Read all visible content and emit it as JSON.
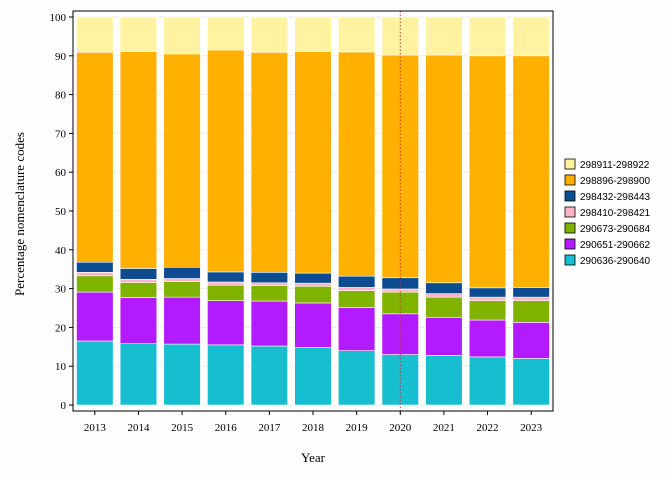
{
  "chart_data": {
    "type": "bar",
    "stacked": true,
    "xlabel": "Year",
    "ylabel": "Percentage nomenclature codes",
    "ylim": [
      0,
      100
    ],
    "yticks": [
      0,
      10,
      20,
      30,
      40,
      50,
      60,
      70,
      80,
      90,
      100
    ],
    "grid": true,
    "legend_position": "right",
    "reference_line": {
      "x": "2020",
      "style": "dotted",
      "color": "#c0392b"
    },
    "categories": [
      "2013",
      "2014",
      "2015",
      "2016",
      "2017",
      "2018",
      "2019",
      "2020",
      "2021",
      "2022",
      "2023"
    ],
    "series": [
      {
        "name": "290636-290640",
        "color": "#17BECF",
        "values": [
          16.5,
          15.8,
          15.7,
          15.5,
          15.2,
          14.8,
          14.0,
          13.0,
          12.8,
          12.4,
          12.0
        ]
      },
      {
        "name": "290651-290662",
        "color": "#B31BFF",
        "values": [
          12.6,
          11.9,
          12.1,
          11.4,
          11.6,
          11.5,
          11.1,
          10.5,
          9.8,
          9.5,
          9.3
        ]
      },
      {
        "name": "290673-290684",
        "color": "#80B300",
        "values": [
          4.2,
          3.9,
          4.0,
          4.0,
          4.0,
          4.3,
          4.4,
          5.6,
          5.2,
          5.0,
          5.6
        ]
      },
      {
        "name": "298410-298421",
        "color": "#FFB3C6",
        "values": [
          0.9,
          0.8,
          0.8,
          0.8,
          0.7,
          0.8,
          0.8,
          0.8,
          0.9,
          0.9,
          0.9
        ]
      },
      {
        "name": "298432-298443",
        "color": "#0E4C92",
        "values": [
          2.6,
          2.8,
          2.9,
          2.6,
          2.7,
          2.6,
          2.9,
          2.9,
          2.8,
          2.4,
          2.5
        ]
      },
      {
        "name": "298896-298900",
        "color": "#FFB000",
        "values": [
          54.1,
          55.9,
          55.0,
          57.2,
          56.7,
          57.1,
          57.8,
          57.4,
          58.7,
          59.8,
          59.7
        ]
      },
      {
        "name": "298911-298922",
        "color": "#FFF2A0",
        "values": [
          9.1,
          8.9,
          9.5,
          8.5,
          9.1,
          8.9,
          9.0,
          9.8,
          9.8,
          10.0,
          10.0
        ]
      }
    ]
  }
}
